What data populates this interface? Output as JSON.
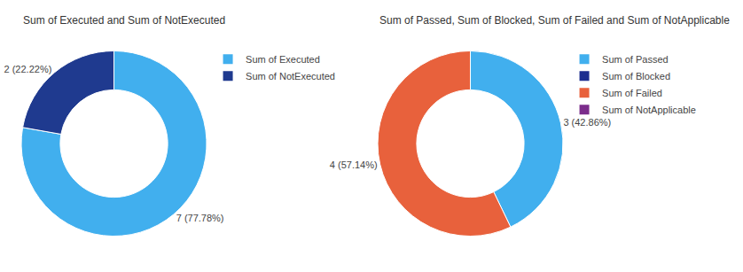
{
  "chart_data": [
    {
      "type": "pie",
      "title": "Sum of Executed and Sum of NotExecuted",
      "categories": [
        "Sum of Executed",
        "Sum of NotExecuted"
      ],
      "values": [
        7,
        2
      ],
      "value_labels": [
        "7 (77.78%)",
        "2 (22.22%)"
      ],
      "colors": [
        "#41AFEE",
        "#1F3A8F"
      ],
      "data_labels": true,
      "legend": "right"
    },
    {
      "type": "pie",
      "title": "Sum of Passed, Sum of Blocked, Sum of Failed and Sum of NotApplicable",
      "categories": [
        "Sum of Passed",
        "Sum of Blocked",
        "Sum of Failed",
        "Sum of NotApplicable"
      ],
      "values": [
        3,
        null,
        4,
        null
      ],
      "value_labels": [
        "3 (42.86%)",
        null,
        "4 (57.14%)",
        null
      ],
      "colors": [
        "#41AFEE",
        "#1C2D8F",
        "#E8613C",
        "#7B2D8B"
      ],
      "data_labels": true,
      "legend": "right"
    }
  ]
}
